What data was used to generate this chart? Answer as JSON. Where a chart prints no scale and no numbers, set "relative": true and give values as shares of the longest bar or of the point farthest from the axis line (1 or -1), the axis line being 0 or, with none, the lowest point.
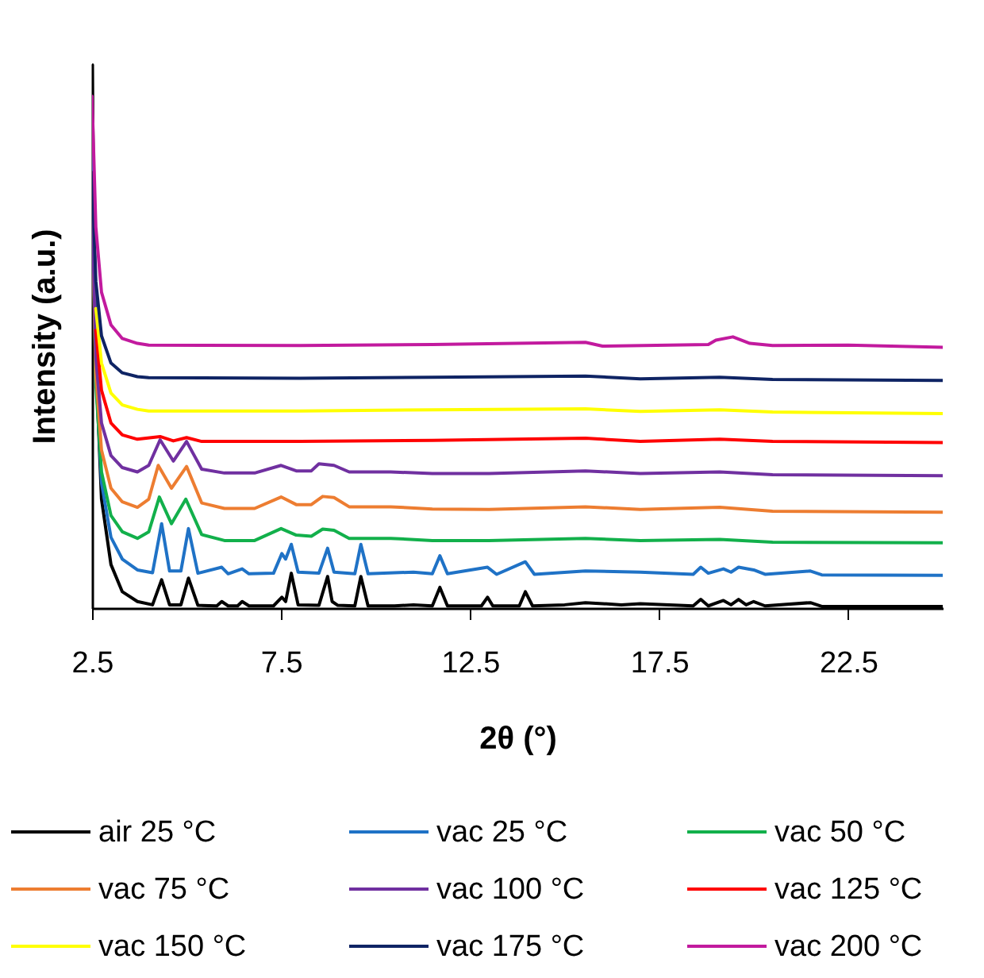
{
  "chart_data": {
    "type": "line",
    "xlabel": "2θ (°)",
    "ylabel": "Intensity (a.u.)",
    "relative": true,
    "xlim": [
      2.5,
      25
    ],
    "xticks": [
      2.5,
      7.5,
      12.5,
      17.5,
      22.5
    ],
    "legend": "bottom",
    "marker": "none",
    "line_style": "solid",
    "series": [
      {
        "name": "air 25 °C",
        "color": "#000000",
        "x": [
          2.5,
          2.6,
          2.75,
          3.0,
          3.3,
          3.7,
          4.1,
          4.34,
          4.55,
          4.85,
          5.05,
          5.3,
          5.8,
          5.93,
          6.1,
          6.35,
          6.47,
          6.65,
          7.3,
          7.52,
          7.62,
          7.77,
          7.95,
          8.5,
          8.73,
          8.85,
          9.0,
          9.45,
          9.61,
          9.8,
          10.5,
          11.0,
          11.5,
          11.7,
          11.9,
          12.8,
          12.96,
          13.1,
          13.8,
          13.96,
          14.15,
          15.0,
          15.55,
          16.5,
          17.0,
          18.4,
          18.6,
          18.8,
          19.2,
          19.4,
          19.6,
          19.8,
          20.0,
          20.3,
          21.5,
          21.8,
          25.0
        ],
        "values": [
          1.0,
          0.45,
          0.2,
          0.08,
          0.03,
          0.012,
          0.006,
          0.052,
          0.006,
          0.006,
          0.055,
          0.005,
          0.004,
          0.012,
          0.004,
          0.004,
          0.012,
          0.004,
          0.004,
          0.02,
          0.012,
          0.064,
          0.006,
          0.005,
          0.058,
          0.012,
          0.005,
          0.004,
          0.058,
          0.004,
          0.004,
          0.006,
          0.004,
          0.038,
          0.004,
          0.004,
          0.02,
          0.004,
          0.004,
          0.03,
          0.004,
          0.006,
          0.01,
          0.006,
          0.008,
          0.004,
          0.016,
          0.004,
          0.014,
          0.006,
          0.016,
          0.006,
          0.012,
          0.004,
          0.01,
          0.003,
          0.003
        ]
      },
      {
        "name": "vac 25 °C",
        "color": "#1f72c6",
        "x": [
          2.5,
          2.6,
          2.75,
          3.0,
          3.3,
          3.7,
          4.1,
          4.34,
          4.55,
          4.85,
          5.05,
          5.3,
          5.93,
          6.1,
          6.47,
          6.65,
          7.3,
          7.52,
          7.62,
          7.77,
          7.95,
          8.5,
          8.73,
          8.9,
          9.45,
          9.61,
          9.8,
          11.0,
          11.5,
          11.7,
          11.9,
          12.96,
          13.2,
          13.96,
          14.2,
          15.55,
          17.0,
          18.4,
          18.6,
          18.8,
          19.2,
          19.4,
          19.6,
          20.0,
          20.3,
          21.5,
          21.8,
          25.0
        ],
        "values": [
          0.9,
          0.44,
          0.23,
          0.13,
          0.09,
          0.07,
          0.065,
          0.155,
          0.068,
          0.068,
          0.146,
          0.064,
          0.075,
          0.063,
          0.072,
          0.063,
          0.064,
          0.1,
          0.09,
          0.117,
          0.066,
          0.064,
          0.11,
          0.066,
          0.063,
          0.117,
          0.063,
          0.066,
          0.063,
          0.096,
          0.063,
          0.075,
          0.062,
          0.085,
          0.062,
          0.068,
          0.066,
          0.062,
          0.075,
          0.064,
          0.072,
          0.066,
          0.075,
          0.07,
          0.062,
          0.068,
          0.061,
          0.06
        ]
      },
      {
        "name": "vac 50 °C",
        "color": "#12b04b",
        "x": [
          2.5,
          2.6,
          2.75,
          3.0,
          3.3,
          3.7,
          4.0,
          4.28,
          4.6,
          4.98,
          5.4,
          6.0,
          6.8,
          7.5,
          7.9,
          8.3,
          8.6,
          8.9,
          9.3,
          10.4,
          11.5,
          13.0,
          15.55,
          17.0,
          19.1,
          20.5,
          25.0
        ],
        "values": [
          0.76,
          0.41,
          0.25,
          0.17,
          0.14,
          0.128,
          0.14,
          0.204,
          0.155,
          0.2,
          0.135,
          0.124,
          0.124,
          0.146,
          0.134,
          0.132,
          0.145,
          0.143,
          0.128,
          0.128,
          0.124,
          0.124,
          0.128,
          0.124,
          0.126,
          0.121,
          0.12
        ]
      },
      {
        "name": "vac 75 °C",
        "color": "#ed7d31",
        "x": [
          2.5,
          2.6,
          2.75,
          3.0,
          3.3,
          3.7,
          4.0,
          4.25,
          4.6,
          5.0,
          5.4,
          6.0,
          6.8,
          7.5,
          7.9,
          8.3,
          8.6,
          8.9,
          9.3,
          10.4,
          11.5,
          13.0,
          15.55,
          17.0,
          19.1,
          20.5,
          25.0
        ],
        "values": [
          0.74,
          0.43,
          0.29,
          0.22,
          0.195,
          0.185,
          0.2,
          0.262,
          0.22,
          0.26,
          0.193,
          0.183,
          0.183,
          0.204,
          0.19,
          0.19,
          0.205,
          0.203,
          0.186,
          0.186,
          0.182,
          0.181,
          0.186,
          0.181,
          0.185,
          0.178,
          0.176
        ]
      },
      {
        "name": "vac 100 °C",
        "color": "#7030a0",
        "x": [
          2.5,
          2.6,
          2.75,
          3.0,
          3.3,
          3.7,
          4.0,
          4.3,
          4.65,
          5.0,
          5.4,
          6.0,
          6.8,
          7.5,
          7.9,
          8.3,
          8.5,
          8.9,
          9.3,
          10.4,
          11.5,
          13.0,
          15.55,
          17.0,
          19.1,
          20.5,
          25.0
        ],
        "values": [
          0.74,
          0.46,
          0.34,
          0.28,
          0.258,
          0.25,
          0.262,
          0.309,
          0.27,
          0.306,
          0.255,
          0.248,
          0.248,
          0.262,
          0.252,
          0.252,
          0.265,
          0.262,
          0.25,
          0.25,
          0.247,
          0.247,
          0.252,
          0.247,
          0.25,
          0.245,
          0.243
        ]
      },
      {
        "name": "vac 125 °C",
        "color": "#ff0000",
        "x": [
          2.6,
          2.75,
          3.0,
          3.3,
          3.7,
          4.3,
          4.65,
          5.0,
          5.4,
          8.0,
          11.5,
          15.55,
          17.0,
          19.1,
          20.5,
          25.0
        ],
        "values": [
          0.51,
          0.4,
          0.34,
          0.318,
          0.31,
          0.315,
          0.307,
          0.313,
          0.306,
          0.306,
          0.308,
          0.312,
          0.306,
          0.31,
          0.306,
          0.304
        ]
      },
      {
        "name": "vac 150 °C",
        "color": "#ffff00",
        "x": [
          2.6,
          2.75,
          3.0,
          3.3,
          3.7,
          4.0,
          8.0,
          11.5,
          15.55,
          17.0,
          19.1,
          20.5,
          25.0
        ],
        "values": [
          0.55,
          0.45,
          0.395,
          0.373,
          0.365,
          0.362,
          0.362,
          0.364,
          0.366,
          0.361,
          0.364,
          0.36,
          0.357
        ]
      },
      {
        "name": "vac 175 °C",
        "color": "#0f2464",
        "x": [
          2.5,
          2.6,
          2.75,
          3.0,
          3.3,
          3.7,
          4.0,
          8.0,
          11.5,
          15.55,
          17.0,
          19.1,
          20.5,
          25.0
        ],
        "values": [
          0.8,
          0.6,
          0.5,
          0.45,
          0.432,
          0.425,
          0.423,
          0.422,
          0.424,
          0.426,
          0.421,
          0.424,
          0.42,
          0.418
        ]
      },
      {
        "name": "vac 200 °C",
        "color": "#c21a9e",
        "x": [
          2.5,
          2.6,
          2.75,
          3.0,
          3.3,
          3.7,
          4.0,
          8.0,
          11.5,
          15.55,
          16.0,
          18.8,
          19.0,
          19.45,
          19.9,
          20.5,
          22.5,
          25.0
        ],
        "values": [
          0.94,
          0.7,
          0.58,
          0.52,
          0.495,
          0.486,
          0.483,
          0.482,
          0.484,
          0.488,
          0.481,
          0.484,
          0.492,
          0.498,
          0.486,
          0.482,
          0.483,
          0.479
        ]
      }
    ]
  }
}
